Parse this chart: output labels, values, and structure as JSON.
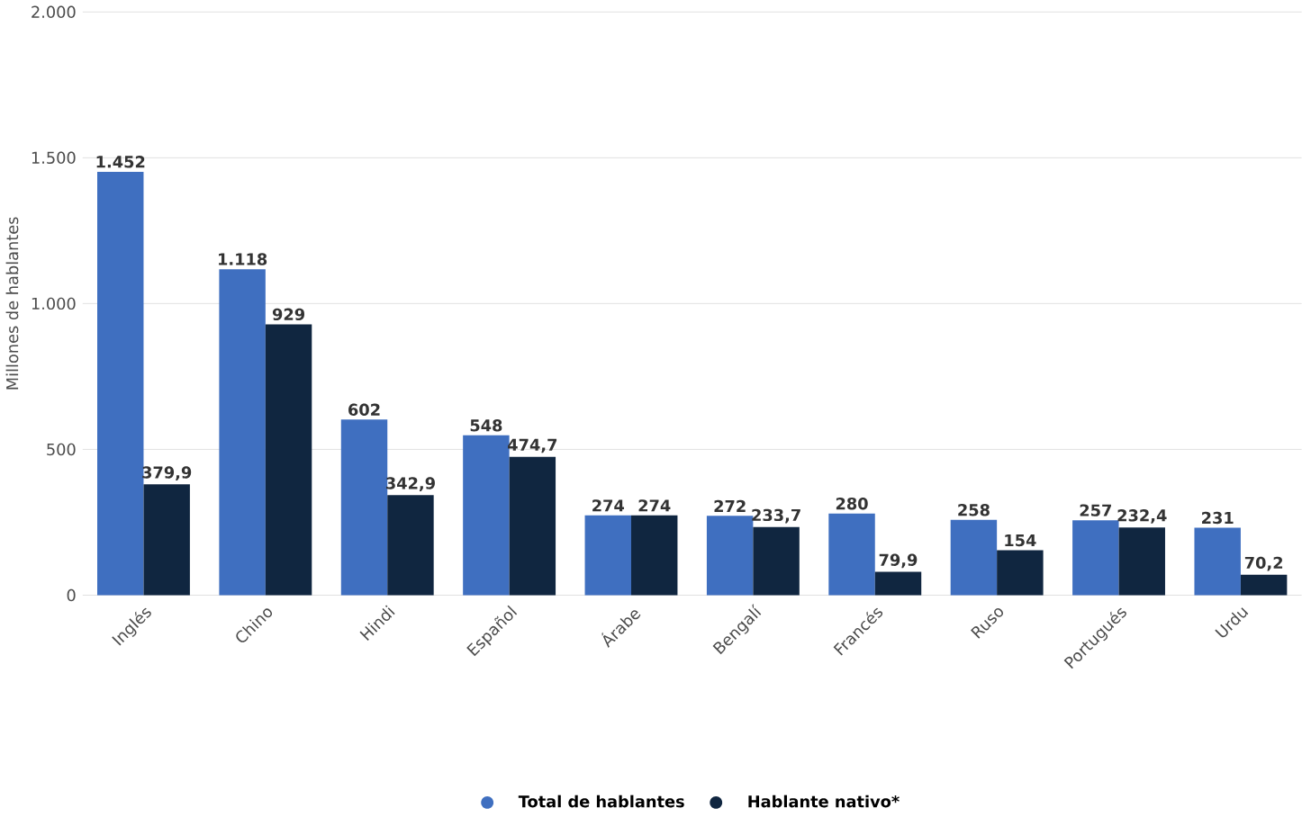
{
  "chart_data": {
    "type": "bar",
    "ylabel": "Millones de hablantes",
    "categories": [
      "Inglés",
      "Chino",
      "Hindi",
      "Español",
      "Árabe",
      "Bengalí",
      "Francés",
      "Ruso",
      "Portugués",
      "Urdu"
    ],
    "series": [
      {
        "name": "Total de hablantes",
        "color": "#3f6fc0",
        "values": [
          1452,
          1118,
          602,
          548,
          274,
          272,
          280,
          258,
          257,
          231
        ],
        "value_labels": [
          "1.452",
          "1.118",
          "602",
          "548",
          "274",
          "272",
          "280",
          "258",
          "257",
          "231"
        ]
      },
      {
        "name": "Hablante nativo*",
        "color": "#102640",
        "values": [
          379.9,
          929,
          342.9,
          474.7,
          274,
          233.7,
          79.9,
          154,
          232.4,
          70.2
        ],
        "value_labels": [
          "379,9",
          "929",
          "342,9",
          "474,7",
          "274",
          "233,7",
          "79,9",
          "154",
          "232,4",
          "70,2"
        ]
      }
    ],
    "ylim": [
      0,
      2000
    ],
    "yticks": [
      {
        "value": 0,
        "label": "0"
      },
      {
        "value": 500,
        "label": "500"
      },
      {
        "value": 1000,
        "label": "1.000"
      },
      {
        "value": 1500,
        "label": "1.500"
      },
      {
        "value": 2000,
        "label": "2.000"
      }
    ],
    "grid": "y",
    "legend": "bottom",
    "marker": "circle"
  }
}
